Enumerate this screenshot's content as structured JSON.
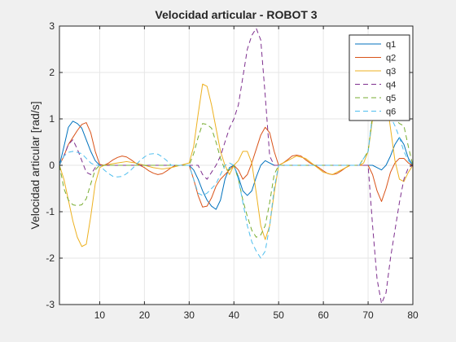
{
  "chart_data": {
    "type": "line",
    "title": "Velocidad articular - ROBOT 3",
    "xlabel": "",
    "ylabel": "Velocidad articular [rad/s]",
    "xlim": [
      1,
      80
    ],
    "ylim": [
      -3,
      3
    ],
    "xticks": [
      10,
      20,
      30,
      40,
      50,
      60,
      70,
      80
    ],
    "yticks": [
      -3,
      -2,
      -1,
      0,
      1,
      2,
      3
    ],
    "grid": true,
    "legend_position": "top-right",
    "series": [
      {
        "name": "q1",
        "color": "#0072bd",
        "dash": "solid",
        "x": [
          1,
          2,
          3,
          4,
          5,
          6,
          7,
          8,
          9,
          10,
          11,
          12,
          14,
          16,
          18,
          20,
          22,
          24,
          26,
          28,
          30,
          31,
          32,
          33,
          34,
          35,
          36,
          37,
          38,
          39,
          40,
          41,
          42,
          43,
          44,
          45,
          46,
          47,
          48,
          49,
          50,
          52,
          54,
          56,
          58,
          60,
          62,
          64,
          66,
          68,
          70,
          71,
          72,
          73,
          74,
          75,
          76,
          77,
          78,
          79,
          80
        ],
        "y": [
          0,
          0.4,
          0.82,
          0.95,
          0.9,
          0.8,
          0.55,
          0.3,
          0.1,
          0,
          0,
          0,
          0,
          0,
          0,
          0,
          0,
          0,
          0,
          0,
          0,
          -0.1,
          -0.3,
          -0.55,
          -0.75,
          -0.88,
          -0.95,
          -0.75,
          -0.3,
          -0.05,
          0,
          -0.25,
          -0.55,
          -0.65,
          -0.55,
          -0.25,
          0,
          0.1,
          0.05,
          0,
          0,
          0,
          0,
          0,
          0,
          0,
          0,
          0,
          0,
          0,
          0,
          0,
          -0.05,
          -0.1,
          0,
          0.2,
          0.45,
          0.6,
          0.45,
          0.15,
          0
        ]
      },
      {
        "name": "q2",
        "color": "#d95319",
        "dash": "solid",
        "x": [
          1,
          2,
          3,
          4,
          5,
          6,
          7,
          8,
          9,
          10,
          11,
          12,
          13,
          14,
          15,
          16,
          17,
          18,
          19,
          20,
          21,
          22,
          23,
          24,
          25,
          26,
          27,
          28,
          29,
          30,
          31,
          32,
          33,
          34,
          35,
          36,
          37,
          38,
          39,
          40,
          41,
          42,
          43,
          44,
          45,
          46,
          47,
          48,
          49,
          50,
          51,
          52,
          53,
          54,
          55,
          56,
          57,
          58,
          59,
          60,
          61,
          62,
          63,
          64,
          65,
          66,
          67,
          68,
          69,
          70,
          71,
          72,
          73,
          74,
          75,
          76,
          77,
          78,
          79,
          80
        ],
        "y": [
          0,
          0.2,
          0.45,
          0.6,
          0.75,
          0.88,
          0.92,
          0.7,
          0.3,
          0.02,
          0,
          0.05,
          0.12,
          0.17,
          0.2,
          0.18,
          0.12,
          0.05,
          0,
          -0.05,
          -0.12,
          -0.17,
          -0.2,
          -0.18,
          -0.12,
          -0.05,
          0,
          0,
          0,
          0,
          -0.3,
          -0.65,
          -0.9,
          -0.88,
          -0.7,
          -0.45,
          -0.3,
          -0.2,
          -0.1,
          0,
          -0.1,
          -0.3,
          -0.2,
          0.05,
          0.35,
          0.65,
          0.82,
          0.7,
          0.3,
          0,
          0.05,
          0.12,
          0.2,
          0.22,
          0.2,
          0.12,
          0.05,
          0,
          -0.05,
          -0.12,
          -0.18,
          -0.2,
          -0.18,
          -0.12,
          -0.05,
          0,
          0,
          0,
          0,
          0,
          -0.2,
          -0.55,
          -0.78,
          -0.5,
          -0.15,
          0.05,
          0.15,
          0.15,
          0.05,
          0
        ]
      },
      {
        "name": "q3",
        "color": "#edb120",
        "dash": "solid",
        "x": [
          1,
          2,
          3,
          4,
          5,
          6,
          7,
          8,
          9,
          10,
          11,
          12,
          14,
          16,
          18,
          20,
          22,
          24,
          26,
          28,
          30,
          31,
          32,
          33,
          34,
          35,
          36,
          37,
          38,
          39,
          40,
          41,
          42,
          43,
          44,
          45,
          46,
          47,
          48,
          49,
          50,
          52,
          54,
          56,
          58,
          60,
          62,
          64,
          66,
          68,
          69,
          70,
          71,
          72,
          73,
          74,
          75,
          76,
          77,
          78,
          79,
          80
        ],
        "y": [
          0,
          -0.3,
          -0.75,
          -1.2,
          -1.55,
          -1.75,
          -1.7,
          -1.1,
          -0.4,
          -0.05,
          0,
          0.02,
          0.05,
          0.08,
          0.05,
          0,
          -0.05,
          -0.08,
          -0.05,
          0,
          0.05,
          0.4,
          1.1,
          1.75,
          1.7,
          1.3,
          0.8,
          0.3,
          0,
          -0.2,
          0,
          0.1,
          0.3,
          0.3,
          0.05,
          -0.6,
          -1.3,
          -1.6,
          -1.3,
          -0.6,
          0,
          0.1,
          0.2,
          0.15,
          0,
          -0.15,
          -0.2,
          -0.1,
          0,
          0,
          0.05,
          0.3,
          1.0,
          1.6,
          1.7,
          1.5,
          0.8,
          0.1,
          -0.3,
          -0.35,
          -0.15,
          0
        ]
      },
      {
        "name": "q4",
        "color": "#7e2f8e",
        "dash": "dashed",
        "x": [
          1,
          2,
          3,
          4,
          5,
          6,
          7,
          8,
          9,
          10,
          11,
          12,
          14,
          16,
          18,
          20,
          22,
          24,
          26,
          28,
          30,
          31,
          32,
          33,
          34,
          35,
          36,
          37,
          38,
          39,
          40,
          41,
          42,
          43,
          44,
          45,
          46,
          47,
          48,
          49,
          50,
          52,
          54,
          56,
          58,
          60,
          62,
          64,
          66,
          68,
          70,
          71,
          72,
          73,
          74,
          75,
          76,
          77,
          78,
          79,
          80
        ],
        "y": [
          0,
          0.2,
          0.45,
          0.55,
          0.35,
          0.1,
          -0.15,
          -0.2,
          -0.05,
          0,
          0,
          0,
          0,
          0,
          0,
          0,
          0,
          0,
          0,
          0,
          0,
          0,
          0,
          -0.2,
          -0.3,
          -0.15,
          0,
          0.2,
          0.5,
          0.8,
          1.0,
          1.3,
          1.9,
          2.5,
          2.8,
          2.95,
          2.7,
          1.5,
          0.2,
          0,
          0,
          0,
          0,
          0,
          0,
          0,
          0,
          0,
          0,
          0,
          0,
          -1.3,
          -2.45,
          -2.98,
          -2.75,
          -2.0,
          -1.4,
          -0.8,
          -0.3,
          -0.05,
          0
        ]
      },
      {
        "name": "q5",
        "color": "#77ac30",
        "dash": "dashed",
        "x": [
          1,
          2,
          3,
          4,
          5,
          6,
          7,
          8,
          9,
          10,
          11,
          12,
          14,
          16,
          18,
          20,
          22,
          24,
          26,
          28,
          30,
          31,
          32,
          33,
          34,
          35,
          36,
          37,
          38,
          39,
          40,
          41,
          42,
          43,
          44,
          45,
          46,
          47,
          48,
          49,
          50,
          52,
          54,
          56,
          58,
          60,
          62,
          64,
          66,
          68,
          70,
          71,
          72,
          73,
          74,
          75,
          76,
          77,
          78,
          79,
          80
        ],
        "y": [
          0,
          -0.5,
          -0.75,
          -0.85,
          -0.87,
          -0.85,
          -0.72,
          -0.4,
          -0.1,
          0,
          0,
          0,
          0,
          0,
          0,
          0,
          0,
          0,
          0,
          0,
          0,
          0.25,
          0.6,
          0.9,
          0.88,
          0.8,
          0.5,
          0.15,
          -0.1,
          -0.1,
          0,
          -0.3,
          -0.75,
          -1.1,
          -1.4,
          -1.55,
          -1.5,
          -1.3,
          -0.8,
          -0.2,
          0,
          0,
          0,
          0,
          0,
          0,
          0,
          0,
          0,
          0,
          0.3,
          1.1,
          1.5,
          1.7,
          1.5,
          1.25,
          1.0,
          0.9,
          0.85,
          0.4,
          0
        ]
      },
      {
        "name": "q6",
        "color": "#4dbeee",
        "dash": "dashed",
        "x": [
          1,
          2,
          3,
          4,
          5,
          6,
          7,
          8,
          9,
          10,
          11,
          12,
          13,
          14,
          15,
          16,
          17,
          18,
          19,
          20,
          21,
          22,
          23,
          24,
          25,
          26,
          27,
          28,
          29,
          30,
          31,
          32,
          33,
          34,
          35,
          36,
          37,
          38,
          39,
          40,
          41,
          42,
          43,
          44,
          45,
          46,
          47,
          48,
          49,
          50,
          52,
          54,
          56,
          58,
          60,
          62,
          64,
          66,
          68,
          70,
          71,
          72,
          73,
          74,
          75,
          76,
          77,
          78,
          79,
          80
        ],
        "y": [
          0,
          0.2,
          0.28,
          0.3,
          0.28,
          0.25,
          0.15,
          0.05,
          0,
          0,
          -0.1,
          -0.18,
          -0.24,
          -0.25,
          -0.24,
          -0.18,
          -0.1,
          0,
          0.1,
          0.18,
          0.24,
          0.25,
          0.24,
          0.18,
          0.1,
          0,
          0,
          0,
          0,
          0,
          -0.3,
          -0.6,
          -0.65,
          -0.6,
          -0.5,
          -0.4,
          -0.2,
          0,
          0.05,
          0,
          -0.3,
          -0.8,
          -1.3,
          -1.65,
          -1.85,
          -2.0,
          -1.85,
          -1.3,
          -0.5,
          0,
          0,
          0,
          0,
          0,
          0,
          0,
          0,
          0,
          0,
          0.3,
          1.1,
          1.5,
          1.6,
          1.4,
          1.05,
          0.85,
          0.6,
          0.3,
          0.1,
          0
        ]
      }
    ]
  }
}
